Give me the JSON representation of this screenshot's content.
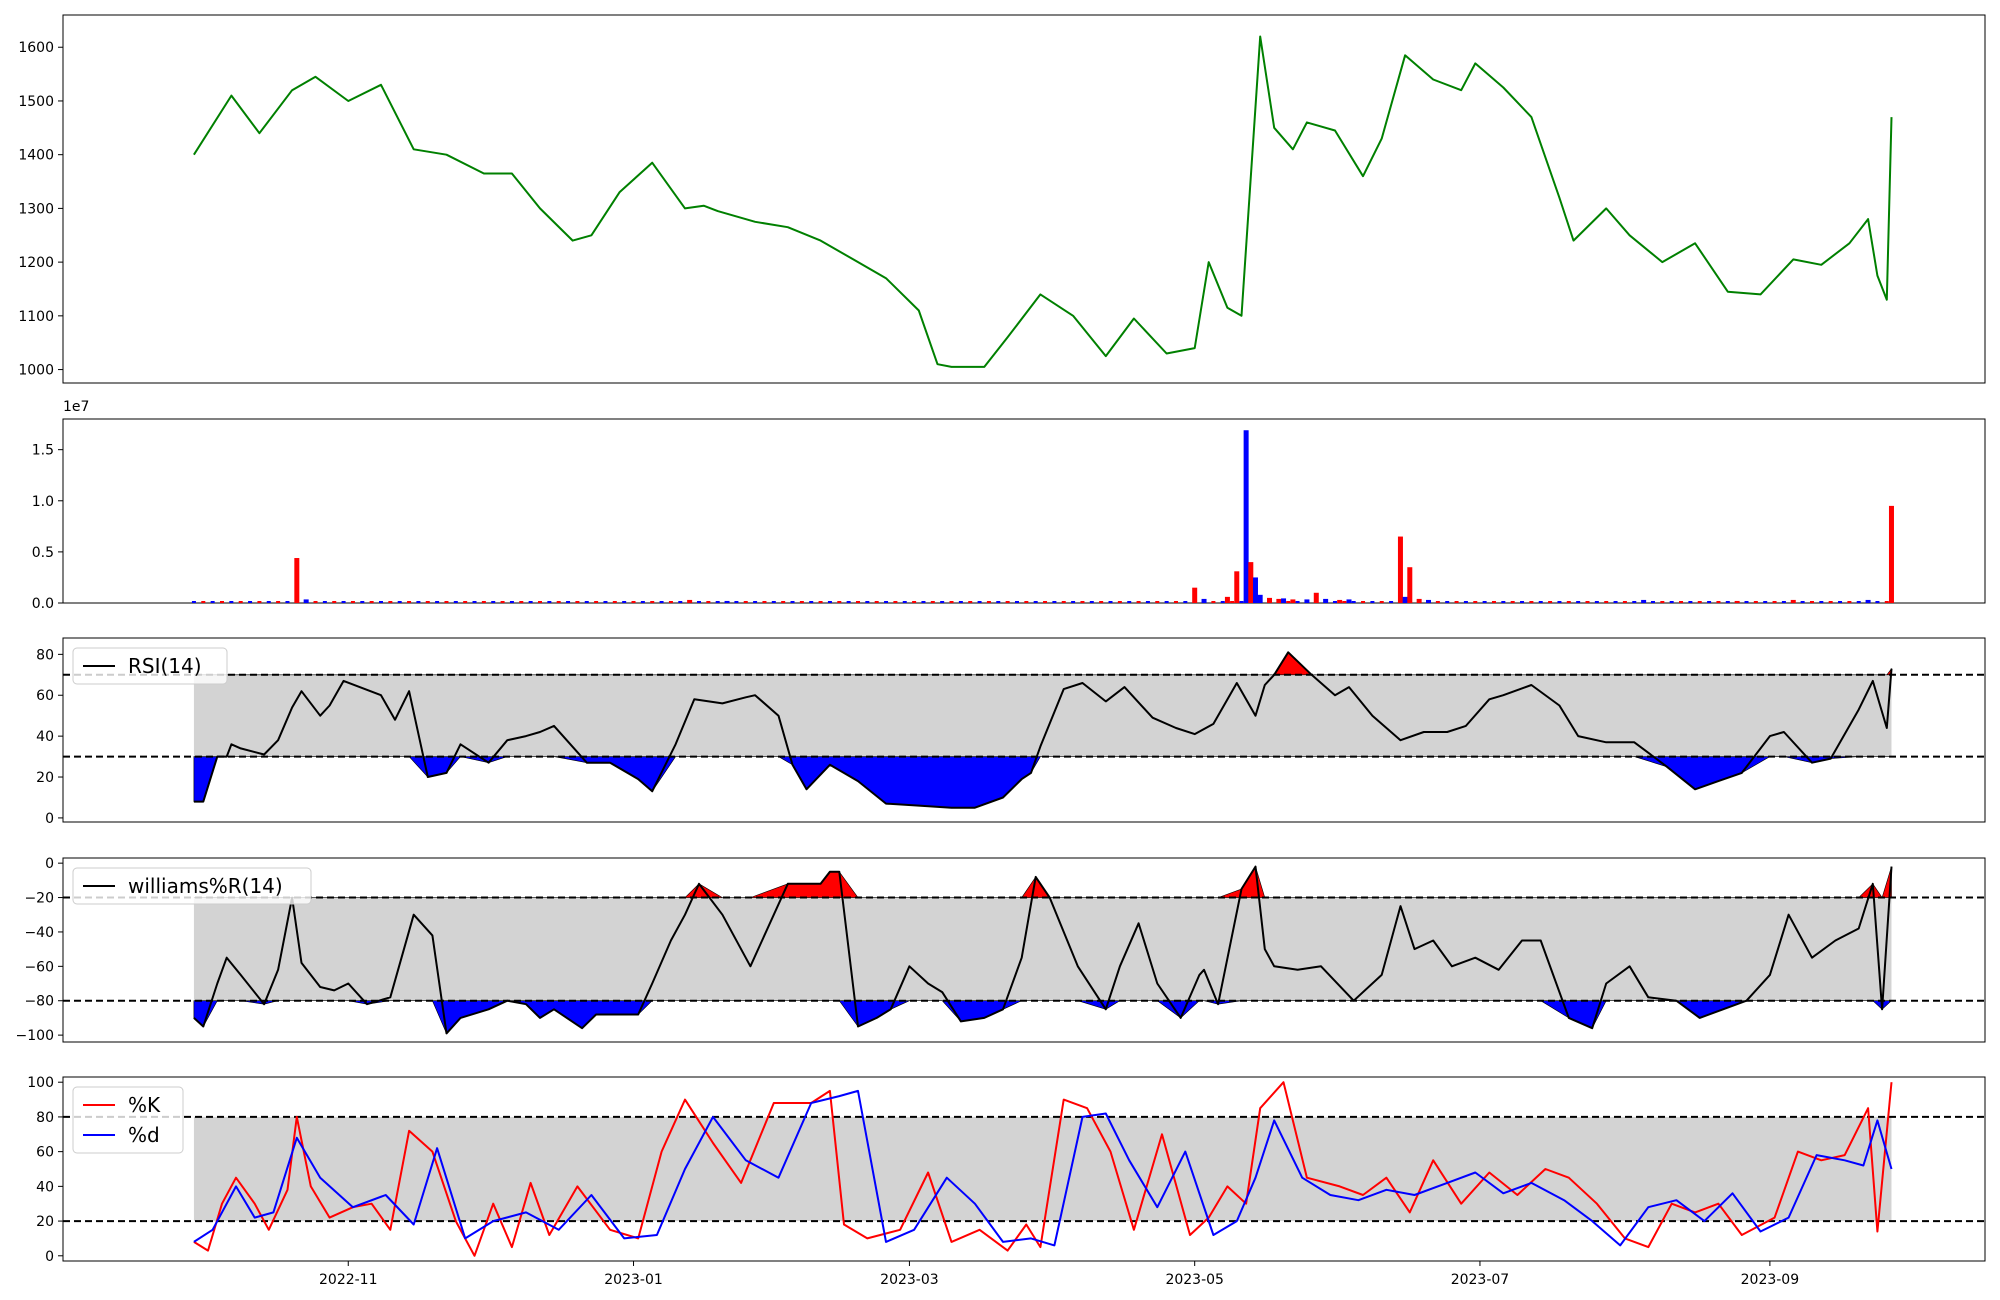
{
  "chart_data": [
    {
      "type": "line",
      "panel": "price",
      "ylim": [
        975,
        1660
      ],
      "yticks": [
        1000,
        1100,
        1200,
        1300,
        1400,
        1500,
        1600
      ],
      "colors": {
        "line": "#008000"
      },
      "x": [
        "2022-09-29",
        "2022-10-07",
        "2022-10-13",
        "2022-10-20",
        "2022-10-25",
        "2022-11-01",
        "2022-11-08",
        "2022-11-15",
        "2022-11-22",
        "2022-11-30",
        "2022-12-06",
        "2022-12-12",
        "2022-12-19",
        "2022-12-23",
        "2022-12-29",
        "2023-01-05",
        "2023-01-12",
        "2023-01-16",
        "2023-01-19",
        "2023-01-27",
        "2023-02-03",
        "2023-02-10",
        "2023-02-17",
        "2023-02-24",
        "2023-03-03",
        "2023-03-07",
        "2023-03-10",
        "2023-03-17",
        "2023-03-22",
        "2023-03-29",
        "2023-04-05",
        "2023-04-12",
        "2023-04-18",
        "2023-04-25",
        "2023-05-01",
        "2023-05-04",
        "2023-05-08",
        "2023-05-11",
        "2023-05-15",
        "2023-05-18",
        "2023-05-22",
        "2023-05-25",
        "2023-05-31",
        "2023-06-06",
        "2023-06-10",
        "2023-06-15",
        "2023-06-21",
        "2023-06-27",
        "2023-06-30",
        "2023-07-06",
        "2023-07-12",
        "2023-07-18",
        "2023-07-21",
        "2023-07-28",
        "2023-08-02",
        "2023-08-09",
        "2023-08-16",
        "2023-08-23",
        "2023-08-30",
        "2023-09-06",
        "2023-09-12",
        "2023-09-18",
        "2023-09-22",
        "2023-09-24",
        "2023-09-26",
        "2023-09-27"
      ],
      "values": [
        1400,
        1510,
        1440,
        1520,
        1545,
        1500,
        1530,
        1410,
        1400,
        1365,
        1365,
        1300,
        1240,
        1250,
        1330,
        1385,
        1300,
        1305,
        1295,
        1275,
        1265,
        1240,
        1205,
        1170,
        1110,
        1010,
        1005,
        1005,
        1060,
        1140,
        1100,
        1025,
        1095,
        1030,
        1040,
        1200,
        1115,
        1100,
        1620,
        1450,
        1410,
        1460,
        1445,
        1360,
        1430,
        1585,
        1540,
        1520,
        1570,
        1525,
        1470,
        1320,
        1240,
        1300,
        1250,
        1200,
        1235,
        1145,
        1140,
        1205,
        1195,
        1235,
        1280,
        1175,
        1130,
        1470
      ],
      "colors_note": "green"
    },
    {
      "type": "bar",
      "panel": "volume",
      "ylim": [
        0,
        18000000
      ],
      "yticks": [
        0,
        5000000,
        10000000,
        15000000
      ],
      "ytick_labels": [
        "0.0",
        "0.5",
        "1.0",
        "1.5"
      ],
      "offset_label": "1e7",
      "colors": {
        "up": "#ff0000",
        "down": "#0000ff"
      },
      "x": [
        "2022-10-21",
        "2022-10-23",
        "2023-01-13",
        "2023-01-21",
        "2023-05-01",
        "2023-05-03",
        "2023-05-08",
        "2023-05-10",
        "2023-05-12",
        "2023-05-13",
        "2023-05-14",
        "2023-05-15",
        "2023-05-17",
        "2023-05-19",
        "2023-05-20",
        "2023-05-22",
        "2023-05-25",
        "2023-05-27",
        "2023-05-29",
        "2023-06-01",
        "2023-06-03",
        "2023-06-14",
        "2023-06-15",
        "2023-06-16",
        "2023-06-18",
        "2023-06-20",
        "2023-08-05",
        "2023-08-25",
        "2023-09-06",
        "2023-09-22",
        "2023-09-27"
      ],
      "values": [
        4400000,
        350000,
        300000,
        200000,
        1500000,
        400000,
        600000,
        3100000,
        16900000,
        4000000,
        2500000,
        800000,
        500000,
        400000,
        450000,
        350000,
        350000,
        1000000,
        400000,
        300000,
        350000,
        6500000,
        600000,
        3500000,
        400000,
        300000,
        300000,
        200000,
        300000,
        300000,
        9500000
      ],
      "bar_colors": [
        "red",
        "blue",
        "red",
        "blue",
        "red",
        "blue",
        "red",
        "red",
        "blue",
        "red",
        "blue",
        "blue",
        "red",
        "red",
        "blue",
        "red",
        "blue",
        "red",
        "blue",
        "red",
        "blue",
        "red",
        "blue",
        "red",
        "red",
        "blue",
        "blue",
        "red",
        "red",
        "blue",
        "red"
      ],
      "baseline_series": "small volumes (< 0.03e7) on most other days"
    },
    {
      "type": "line",
      "panel": "rsi",
      "ylim": [
        -2,
        88
      ],
      "yticks": [
        0,
        20,
        40,
        60,
        80
      ],
      "upper": 70,
      "lower": 30,
      "colors": {
        "line": "#000000",
        "overbought": "#ff0000",
        "oversold": "#0000ff",
        "band": "#d3d3d3"
      },
      "series": [
        {
          "name": "RSI(14)"
        }
      ],
      "x": [
        "2022-09-29",
        "2022-10-01",
        "2022-10-04",
        "2022-10-06",
        "2022-10-07",
        "2022-10-09",
        "2022-10-14",
        "2022-10-17",
        "2022-10-20",
        "2022-10-22",
        "2022-10-26",
        "2022-10-28",
        "2022-10-31",
        "2022-11-08",
        "2022-11-11",
        "2022-11-14",
        "2022-11-18",
        "2022-11-22",
        "2022-11-25",
        "2022-12-01",
        "2022-12-05",
        "2022-12-09",
        "2022-12-12",
        "2022-12-15",
        "2022-12-22",
        "2022-12-27",
        "2023-01-02",
        "2023-01-05",
        "2023-01-10",
        "2023-01-14",
        "2023-01-20",
        "2023-01-25",
        "2023-01-27",
        "2023-02-01",
        "2023-02-04",
        "2023-02-07",
        "2023-02-12",
        "2023-02-18",
        "2023-02-24",
        "2023-03-03",
        "2023-03-10",
        "2023-03-15",
        "2023-03-21",
        "2023-03-25",
        "2023-03-27",
        "2023-03-29",
        "2023-04-03",
        "2023-04-07",
        "2023-04-12",
        "2023-04-16",
        "2023-04-22",
        "2023-04-27",
        "2023-05-01",
        "2023-05-05",
        "2023-05-10",
        "2023-05-14",
        "2023-05-16",
        "2023-05-18",
        "2023-05-21",
        "2023-05-26",
        "2023-05-31",
        "2023-06-03",
        "2023-06-08",
        "2023-06-14",
        "2023-06-19",
        "2023-06-24",
        "2023-06-28",
        "2023-07-03",
        "2023-07-06",
        "2023-07-12",
        "2023-07-18",
        "2023-07-22",
        "2023-07-28",
        "2023-08-03",
        "2023-08-10",
        "2023-08-16",
        "2023-08-21",
        "2023-08-26",
        "2023-09-01",
        "2023-09-04",
        "2023-09-10",
        "2023-09-14",
        "2023-09-20",
        "2023-09-23",
        "2023-09-26",
        "2023-09-27"
      ],
      "values": [
        8,
        8,
        30,
        30,
        36,
        34,
        31,
        38,
        54,
        62,
        50,
        55,
        67,
        60,
        48,
        62,
        20,
        22,
        36,
        27,
        38,
        40,
        42,
        45,
        27,
        27,
        19,
        13,
        36,
        58,
        56,
        59,
        60,
        50,
        26,
        14,
        26,
        18,
        7,
        6,
        5,
        5,
        10,
        19,
        22,
        35,
        63,
        66,
        57,
        64,
        49,
        44,
        41,
        46,
        66,
        50,
        65,
        70,
        81,
        70,
        60,
        64,
        50,
        38,
        42,
        42,
        45,
        58,
        60,
        65,
        55,
        40,
        37,
        37,
        25,
        14,
        18,
        22,
        40,
        42,
        27,
        29,
        53,
        67,
        44,
        73
      ],
      "labels_note": "RSI(14) is a legend entry"
    },
    {
      "type": "line",
      "panel": "williams",
      "ylim": [
        -104,
        3
      ],
      "yticks": [
        -100,
        -80,
        -60,
        -40,
        -20,
        0
      ],
      "ytick_labels": [
        "−100",
        "−80",
        "−60",
        "−40",
        "−20",
        "0"
      ],
      "upper": -20,
      "lower": -80,
      "colors": {
        "line": "#000000",
        "overbought": "#ff0000",
        "oversold": "#0000ff",
        "band": "#d3d3d3"
      },
      "series": [
        {
          "name": "williams%R(14)"
        }
      ],
      "x": [
        "2022-09-29",
        "2022-10-01",
        "2022-10-04",
        "2022-10-06",
        "2022-10-09",
        "2022-10-14",
        "2022-10-17",
        "2022-10-20",
        "2022-10-22",
        "2022-10-26",
        "2022-10-29",
        "2022-11-01",
        "2022-11-05",
        "2022-11-10",
        "2022-11-15",
        "2022-11-19",
        "2022-11-22",
        "2022-11-25",
        "2022-12-01",
        "2022-12-05",
        "2022-12-09",
        "2022-12-12",
        "2022-12-15",
        "2022-12-21",
        "2022-12-24",
        "2023-01-02",
        "2023-01-05",
        "2023-01-09",
        "2023-01-12",
        "2023-01-15",
        "2023-01-20",
        "2023-01-26",
        "2023-02-03",
        "2023-02-10",
        "2023-02-12",
        "2023-02-14",
        "2023-02-18",
        "2023-02-22",
        "2023-02-25",
        "2023-03-01",
        "2023-03-05",
        "2023-03-08",
        "2023-03-12",
        "2023-03-17",
        "2023-03-21",
        "2023-03-25",
        "2023-03-28",
        "2023-03-31",
        "2023-04-03",
        "2023-04-06",
        "2023-04-12",
        "2023-04-15",
        "2023-04-19",
        "2023-04-23",
        "2023-04-28",
        "2023-05-02",
        "2023-05-03",
        "2023-05-06",
        "2023-05-11",
        "2023-05-14",
        "2023-05-16",
        "2023-05-18",
        "2023-05-23",
        "2023-05-28",
        "2023-06-04",
        "2023-06-10",
        "2023-06-14",
        "2023-06-17",
        "2023-06-21",
        "2023-06-25",
        "2023-06-30",
        "2023-07-05",
        "2023-07-10",
        "2023-07-14",
        "2023-07-20",
        "2023-07-25",
        "2023-07-28",
        "2023-08-02",
        "2023-08-06",
        "2023-08-12",
        "2023-08-17",
        "2023-08-22",
        "2023-08-27",
        "2023-09-01",
        "2023-09-05",
        "2023-09-10",
        "2023-09-15",
        "2023-09-20",
        "2023-09-23",
        "2023-09-25",
        "2023-09-27"
      ],
      "values": [
        -90,
        -95,
        -70,
        -55,
        -65,
        -82,
        -62,
        -20,
        -58,
        -72,
        -74,
        -70,
        -82,
        -78,
        -30,
        -42,
        -99,
        -90,
        -85,
        -80,
        -82,
        -90,
        -85,
        -96,
        -88,
        -88,
        -70,
        -45,
        -30,
        -12,
        -30,
        -60,
        -12,
        -12,
        -5,
        -5,
        -95,
        -90,
        -85,
        -60,
        -70,
        -75,
        -92,
        -90,
        -85,
        -55,
        -8,
        -20,
        -40,
        -60,
        -85,
        -60,
        -35,
        -70,
        -90,
        -65,
        -62,
        -82,
        -15,
        -2,
        -50,
        -60,
        -62,
        -60,
        -80,
        -65,
        -25,
        -50,
        -45,
        -60,
        -55,
        -62,
        -45,
        -45,
        -90,
        -96,
        -70,
        -60,
        -78,
        -80,
        -90,
        -85,
        -80,
        -65,
        -30,
        -55,
        -45,
        -38,
        -12,
        -85,
        -2
      ],
      "labels_note": "williams%R(14) is a legend entry"
    },
    {
      "type": "line",
      "panel": "stoch",
      "ylim": [
        -3,
        103
      ],
      "yticks": [
        0,
        20,
        40,
        60,
        80,
        100
      ],
      "upper": 80,
      "lower": 20,
      "colors": {
        "k": "#ff0000",
        "d": "#0000ff",
        "band": "#d3d3d3"
      },
      "series": [
        {
          "name": "%K",
          "x": [
            "2022-09-29",
            "2022-10-02",
            "2022-10-05",
            "2022-10-08",
            "2022-10-12",
            "2022-10-15",
            "2022-10-19",
            "2022-10-21",
            "2022-10-24",
            "2022-10-28",
            "2022-11-02",
            "2022-11-06",
            "2022-11-10",
            "2022-11-14",
            "2022-11-19",
            "2022-11-24",
            "2022-11-28",
            "2022-12-02",
            "2022-12-06",
            "2022-12-10",
            "2022-12-14",
            "2022-12-20",
            "2022-12-27",
            "2023-01-02",
            "2023-01-07",
            "2023-01-12",
            "2023-01-18",
            "2023-01-24",
            "2023-01-31",
            "2023-02-08",
            "2023-02-12",
            "2023-02-15",
            "2023-02-20",
            "2023-02-27",
            "2023-03-05",
            "2023-03-10",
            "2023-03-16",
            "2023-03-22",
            "2023-03-26",
            "2023-03-29",
            "2023-04-03",
            "2023-04-08",
            "2023-04-13",
            "2023-04-18",
            "2023-04-24",
            "2023-04-30",
            "2023-05-04",
            "2023-05-08",
            "2023-05-12",
            "2023-05-15",
            "2023-05-20",
            "2023-05-25",
            "2023-06-01",
            "2023-06-06",
            "2023-06-11",
            "2023-06-16",
            "2023-06-21",
            "2023-06-27",
            "2023-07-03",
            "2023-07-09",
            "2023-07-15",
            "2023-07-20",
            "2023-07-26",
            "2023-08-01",
            "2023-08-06",
            "2023-08-11",
            "2023-08-16",
            "2023-08-21",
            "2023-08-26",
            "2023-09-02",
            "2023-09-07",
            "2023-09-12",
            "2023-09-17",
            "2023-09-22",
            "2023-09-24",
            "2023-09-27"
          ],
          "values": [
            8,
            3,
            30,
            45,
            30,
            15,
            38,
            80,
            40,
            22,
            28,
            30,
            15,
            72,
            60,
            20,
            0,
            30,
            5,
            42,
            12,
            40,
            15,
            10,
            60,
            90,
            65,
            42,
            88,
            88,
            95,
            18,
            10,
            15,
            48,
            8,
            15,
            3,
            18,
            5,
            90,
            85,
            60,
            15,
            70,
            12,
            22,
            40,
            30,
            85,
            100,
            45,
            40,
            35,
            45,
            25,
            55,
            30,
            48,
            35,
            50,
            45,
            30,
            10,
            5,
            30,
            25,
            30,
            12,
            22,
            60,
            55,
            58,
            85,
            14,
            100
          ]
        },
        {
          "name": "%d",
          "x": [
            "2022-09-29",
            "2022-10-03",
            "2022-10-08",
            "2022-10-12",
            "2022-10-16",
            "2022-10-21",
            "2022-10-26",
            "2022-11-02",
            "2022-11-09",
            "2022-11-15",
            "2022-11-20",
            "2022-11-26",
            "2022-12-02",
            "2022-12-09",
            "2022-12-16",
            "2022-12-23",
            "2022-12-30",
            "2023-01-06",
            "2023-01-12",
            "2023-01-18",
            "2023-01-25",
            "2023-02-01",
            "2023-02-08",
            "2023-02-14",
            "2023-02-18",
            "2023-02-24",
            "2023-03-02",
            "2023-03-09",
            "2023-03-15",
            "2023-03-21",
            "2023-03-27",
            "2023-04-01",
            "2023-04-07",
            "2023-04-12",
            "2023-04-17",
            "2023-04-23",
            "2023-04-29",
            "2023-05-05",
            "2023-05-10",
            "2023-05-14",
            "2023-05-18",
            "2023-05-24",
            "2023-05-30",
            "2023-06-05",
            "2023-06-11",
            "2023-06-17",
            "2023-06-24",
            "2023-06-30",
            "2023-07-06",
            "2023-07-12",
            "2023-07-19",
            "2023-07-25",
            "2023-07-31",
            "2023-08-06",
            "2023-08-12",
            "2023-08-18",
            "2023-08-24",
            "2023-08-30",
            "2023-09-05",
            "2023-09-11",
            "2023-09-17",
            "2023-09-21",
            "2023-09-24",
            "2023-09-27"
          ],
          "values": [
            8,
            15,
            40,
            22,
            25,
            68,
            45,
            28,
            35,
            18,
            62,
            10,
            20,
            25,
            15,
            35,
            10,
            12,
            50,
            80,
            55,
            45,
            88,
            92,
            95,
            8,
            15,
            45,
            30,
            8,
            10,
            6,
            80,
            82,
            55,
            28,
            60,
            12,
            20,
            45,
            78,
            45,
            35,
            32,
            38,
            35,
            42,
            48,
            36,
            42,
            32,
            20,
            6,
            28,
            32,
            20,
            36,
            14,
            22,
            58,
            55,
            52,
            78,
            50
          ]
        }
      ],
      "labels_note": "%K and %d are legend entries"
    }
  ],
  "x_axis": {
    "ticks": [
      "2022-11",
      "2023-01",
      "2023-03",
      "2023-05",
      "2023-07",
      "2023-09"
    ]
  },
  "panels": {
    "price": {
      "yticks": [
        "1000",
        "1100",
        "1200",
        "1300",
        "1400",
        "1500",
        "1600"
      ]
    },
    "volume": {
      "offset_label": "1e7",
      "yticks": [
        "0.0",
        "0.5",
        "1.0",
        "1.5"
      ]
    },
    "rsi": {
      "legend": "RSI(14)",
      "yticks": [
        "0",
        "20",
        "40",
        "60",
        "80"
      ]
    },
    "williams": {
      "legend": "williams%R(14)",
      "yticks": [
        "−100",
        "−80",
        "−60",
        "−40",
        "−20",
        "0"
      ]
    },
    "stoch": {
      "legend_k": "%K",
      "legend_d": "%d",
      "yticks": [
        "0",
        "20",
        "40",
        "60",
        "80",
        "100"
      ]
    }
  }
}
